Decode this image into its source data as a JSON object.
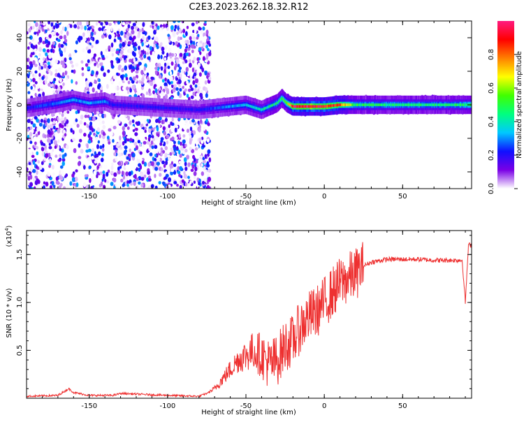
{
  "title": "C2E3.2023.262.18.32.R12",
  "chart_data": [
    {
      "type": "heatmap",
      "xlabel": "Height of straight line (km)",
      "ylabel": "Frequency (Hz)",
      "xlim": [
        -190,
        94
      ],
      "ylim": [
        -50,
        50
      ],
      "xticks": [
        -150,
        -100,
        -50,
        0,
        50
      ],
      "yticks": [
        -40,
        -20,
        0,
        20,
        40
      ],
      "colorbar": {
        "label": "Normalized spectral amplitude",
        "range": [
          0,
          1
        ],
        "ticks": [
          "0.0",
          "0.2",
          "0.4",
          "0.6",
          "0.8"
        ],
        "colors": [
          "#ffffff",
          "#7a00e6",
          "#1010ff",
          "#00c8ff",
          "#00ff80",
          "#40ff00",
          "#ffff00",
          "#ff8000",
          "#ff0000",
          "#ff1a80"
        ]
      },
      "noise_region_x": [
        -190,
        -73
      ],
      "ridge": {
        "x": [
          -190,
          -170,
          -160,
          -150,
          -140,
          -135,
          -80,
          -70,
          -60,
          -50,
          -40,
          -30,
          -27,
          -24,
          -20,
          -10,
          0,
          10,
          20,
          40,
          60,
          80,
          94
        ],
        "freq": [
          -2,
          1,
          3,
          1,
          2,
          0,
          -3,
          -2,
          -1,
          0,
          -3,
          1,
          4,
          1,
          -1,
          -1,
          -1,
          0,
          0,
          0,
          0,
          0,
          0
        ],
        "amplitude": [
          0.2,
          0.3,
          0.32,
          0.3,
          0.3,
          0.2,
          0.2,
          0.25,
          0.3,
          0.35,
          0.4,
          0.45,
          0.5,
          0.6,
          0.9,
          0.95,
          0.95,
          0.8,
          0.5,
          0.45,
          0.45,
          0.45,
          0.5
        ]
      }
    },
    {
      "type": "line",
      "xlabel": "Height of straight line (km)",
      "ylabel": "SNR (10 * v/v)",
      "yscale_label": "(x10",
      "yscale_exp": "4",
      "xlim": [
        -190,
        94
      ],
      "ylim": [
        0,
        1.75
      ],
      "xticks": [
        -150,
        -100,
        -50,
        0,
        50
      ],
      "yticks": [
        "0.5",
        "1.0",
        "1.5"
      ],
      "color": "#ee3030",
      "series": [
        {
          "x": [
            -190,
            -170,
            -163,
            -160,
            -150,
            -135,
            -130,
            -100,
            -80,
            -75,
            -70,
            -65,
            -60,
            -55,
            -50,
            -45,
            -40,
            -35,
            -30,
            -25,
            -20,
            -15,
            -10,
            -5,
            0,
            5,
            10,
            15,
            20,
            25,
            30,
            40,
            50,
            60,
            70,
            80,
            88,
            90,
            92,
            94
          ],
          "y": [
            0.02,
            0.03,
            0.1,
            0.06,
            0.03,
            0.03,
            0.05,
            0.03,
            0.02,
            0.05,
            0.1,
            0.2,
            0.3,
            0.4,
            0.45,
            0.5,
            0.45,
            0.35,
            0.4,
            0.55,
            0.6,
            0.75,
            0.85,
            0.9,
            1.0,
            1.1,
            1.2,
            1.25,
            1.3,
            1.38,
            1.42,
            1.45,
            1.45,
            1.45,
            1.44,
            1.44,
            1.44,
            1.0,
            1.6,
            1.6
          ]
        }
      ]
    }
  ]
}
